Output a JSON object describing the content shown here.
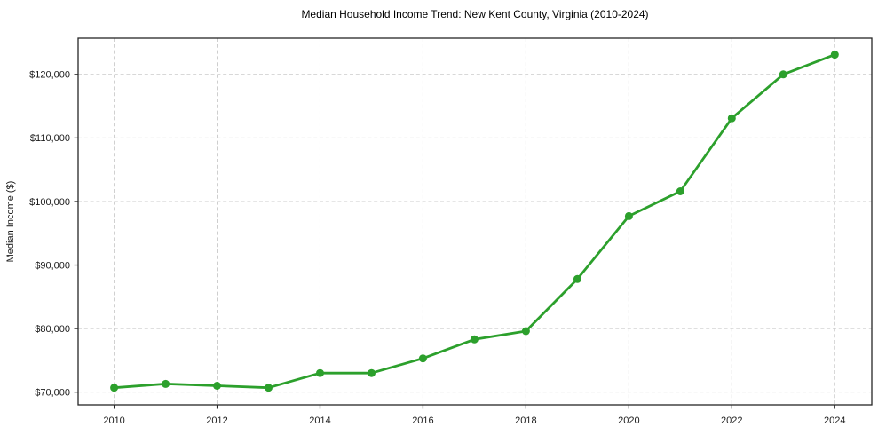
{
  "chart_data": {
    "type": "line",
    "title": "Median Household Income Trend: New Kent County, Virginia (2010-2024)",
    "xlabel": "",
    "ylabel": "Median Income ($)",
    "x": [
      2010,
      2011,
      2012,
      2013,
      2014,
      2015,
      2016,
      2017,
      2018,
      2019,
      2020,
      2021,
      2022,
      2023,
      2024
    ],
    "series": [
      {
        "name": "Median Household Income",
        "values": [
          70700,
          71300,
          71000,
          70700,
          73000,
          73000,
          75300,
          78300,
          79600,
          87800,
          97700,
          101600,
          113100,
          120000,
          123100
        ],
        "color": "#2ca02c"
      }
    ],
    "xticks": [
      {
        "value": 2010,
        "label": "2010"
      },
      {
        "value": 2012,
        "label": "2012"
      },
      {
        "value": 2014,
        "label": "2014"
      },
      {
        "value": 2016,
        "label": "2016"
      },
      {
        "value": 2018,
        "label": "2018"
      },
      {
        "value": 2020,
        "label": "2020"
      },
      {
        "value": 2022,
        "label": "2022"
      },
      {
        "value": 2024,
        "label": "2024"
      }
    ],
    "yticks": [
      {
        "value": 70000,
        "label": "$70,000"
      },
      {
        "value": 80000,
        "label": "$80,000"
      },
      {
        "value": 90000,
        "label": "$90,000"
      },
      {
        "value": 100000,
        "label": "$100,000"
      },
      {
        "value": 110000,
        "label": "$110,000"
      },
      {
        "value": 120000,
        "label": "$120,000"
      }
    ],
    "xlim": [
      2009.3,
      2024.72
    ],
    "ylim": [
      68000,
      125700
    ],
    "grid": true,
    "grid_style": "dashed",
    "legend": "none"
  },
  "colors": {
    "line": "#2ca02c",
    "marker": "#2ca02c",
    "grid": "#cccccc",
    "spine": "#262626",
    "tick": "#262626",
    "text": "#1a1a1a",
    "background": "#ffffff"
  }
}
